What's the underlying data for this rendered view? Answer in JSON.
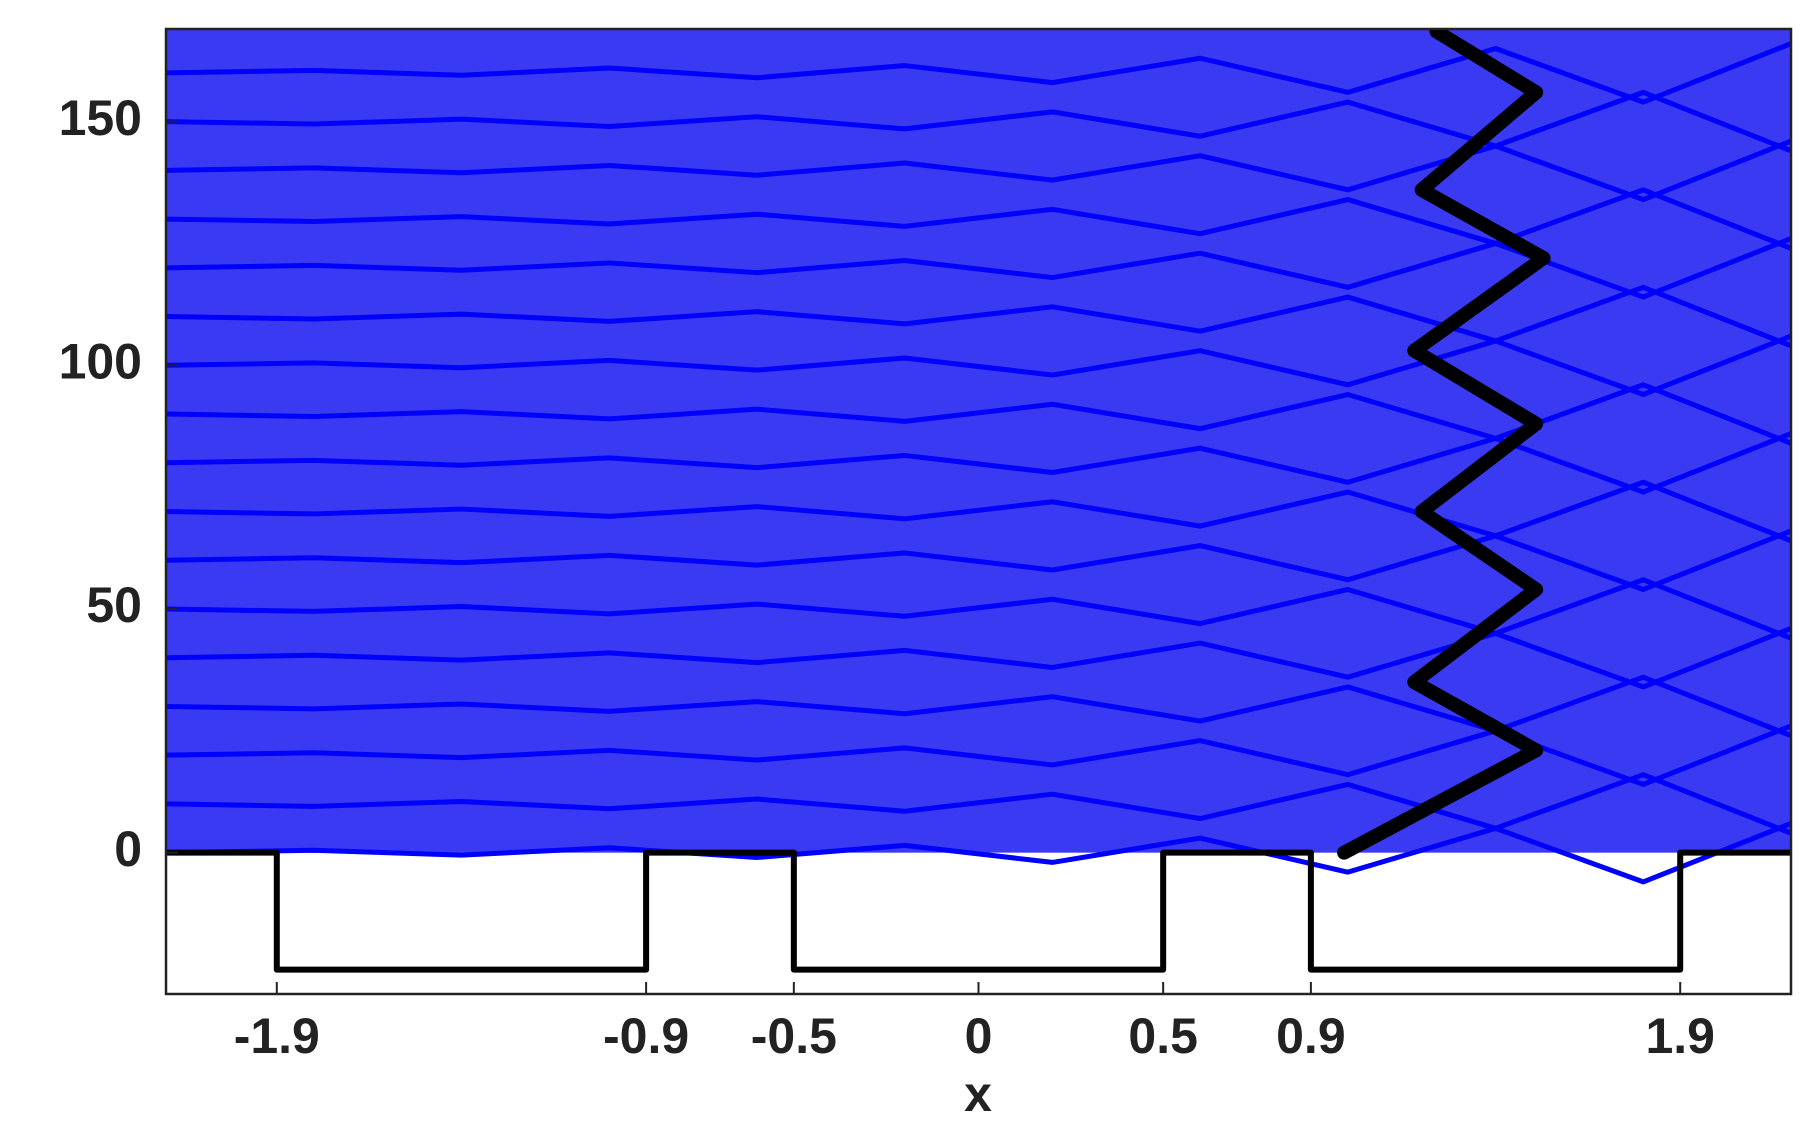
{
  "chart_data": {
    "type": "line",
    "xlabel": "x",
    "xlim": [
      -2.2,
      2.2
    ],
    "ylim": [
      -29,
      169
    ],
    "xticks": [
      -1.9,
      -0.9,
      -0.5,
      0,
      0.5,
      0.9,
      1.9
    ],
    "yticks": [
      0,
      50,
      100,
      150
    ],
    "x": [
      -2.2,
      -1.8,
      -1.4,
      -1.0,
      -0.6,
      -0.2,
      0.2,
      0.6,
      1.0,
      1.4,
      1.8,
      2.2
    ],
    "series": [
      {
        "color": "#0000ff",
        "values": [
          0,
          0.5,
          -0.5,
          1,
          -1,
          1.5,
          -2,
          3,
          -4,
          5,
          -6,
          6
        ]
      },
      {
        "color": "#0000ff",
        "values": [
          10,
          9.5,
          10.5,
          9,
          11,
          8.5,
          12,
          7,
          14,
          5,
          16,
          4
        ]
      },
      {
        "color": "#0000ff",
        "values": [
          20,
          20.5,
          19.5,
          21,
          19,
          21.5,
          18,
          23,
          16,
          25,
          14,
          26
        ]
      },
      {
        "color": "#0000ff",
        "values": [
          30,
          29.5,
          30.5,
          29,
          31,
          28.5,
          32,
          27,
          34,
          25,
          36,
          24
        ]
      },
      {
        "color": "#0000ff",
        "values": [
          40,
          40.5,
          39.5,
          41,
          39,
          41.5,
          38,
          43,
          36,
          45,
          34,
          46
        ]
      },
      {
        "color": "#0000ff",
        "values": [
          50,
          49.5,
          50.5,
          49,
          51,
          48.5,
          52,
          47,
          54,
          45,
          56,
          44
        ]
      },
      {
        "color": "#0000ff",
        "values": [
          60,
          60.5,
          59.5,
          61,
          59,
          61.5,
          58,
          63,
          56,
          65,
          54,
          66
        ]
      },
      {
        "color": "#0000ff",
        "values": [
          70,
          69.5,
          70.5,
          69,
          71,
          68.5,
          72,
          67,
          74,
          65,
          76,
          64
        ]
      },
      {
        "color": "#0000ff",
        "values": [
          80,
          80.5,
          79.5,
          81,
          79,
          81.5,
          78,
          83,
          76,
          85,
          74,
          86
        ]
      },
      {
        "color": "#0000ff",
        "values": [
          90,
          89.5,
          90.5,
          89,
          91,
          88.5,
          92,
          87,
          94,
          85,
          96,
          84
        ]
      },
      {
        "color": "#0000ff",
        "values": [
          100,
          100.5,
          99.5,
          101,
          99,
          101.5,
          98,
          103,
          96,
          105,
          94,
          106
        ]
      },
      {
        "color": "#0000ff",
        "values": [
          110,
          109.5,
          110.5,
          109,
          111,
          108.5,
          112,
          107,
          114,
          105,
          116,
          104
        ]
      },
      {
        "color": "#0000ff",
        "values": [
          120,
          120.5,
          119.5,
          121,
          119,
          121.5,
          118,
          123,
          116,
          125,
          114,
          126
        ]
      },
      {
        "color": "#0000ff",
        "values": [
          130,
          129.5,
          130.5,
          129,
          131,
          128.5,
          132,
          127,
          134,
          125,
          136,
          124
        ]
      },
      {
        "color": "#0000ff",
        "values": [
          140,
          140.5,
          139.5,
          141,
          139,
          141.5,
          138,
          143,
          136,
          145,
          134,
          146
        ]
      },
      {
        "color": "#0000ff",
        "values": [
          150,
          149.5,
          150.5,
          149,
          151,
          148.5,
          152,
          147,
          154,
          145,
          156,
          144
        ]
      },
      {
        "color": "#0000ff",
        "values": [
          160,
          160.5,
          159.5,
          161,
          159,
          161.5,
          158,
          163,
          156,
          165,
          154,
          166
        ]
      },
      {
        "color": "#000000",
        "x": [
          -2.2,
          -1.9,
          -1.9,
          -0.9,
          -0.9,
          -0.5,
          -0.5,
          0.5,
          0.5,
          0.9,
          0.9,
          1.9,
          1.9,
          2.2
        ],
        "values": [
          0,
          0,
          -24,
          -24,
          0,
          0,
          -24,
          -24,
          0,
          0,
          -24,
          -24,
          0,
          0
        ]
      },
      {
        "color": "#000000",
        "x": [
          0.99,
          1.51,
          1.18,
          1.51,
          1.2,
          1.51,
          1.18,
          1.53,
          1.2,
          1.51,
          1.24
        ],
        "values": [
          0,
          21,
          35,
          54,
          70,
          88,
          103,
          122,
          136,
          156,
          168.5
        ]
      }
    ]
  }
}
